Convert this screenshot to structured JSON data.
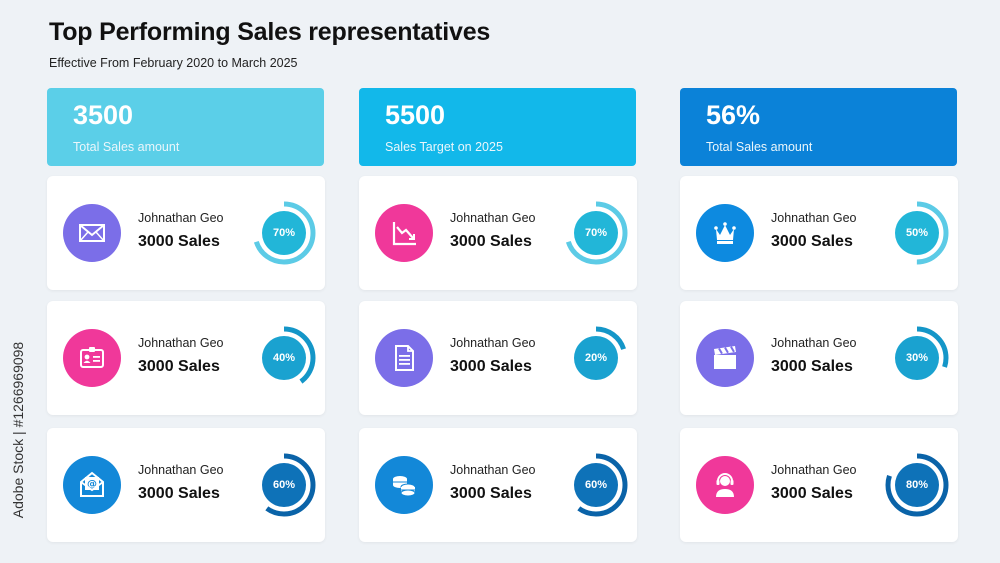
{
  "header": {
    "title": "Top Performing Sales representatives",
    "subtitle": "Effective From February 2020 to March 2025"
  },
  "kpis": [
    {
      "value": "3500",
      "label": "Total Sales amount",
      "color": "#5bcfe8"
    },
    {
      "value": "5500",
      "label": "Sales Target on 2025",
      "color": "#12b8ea"
    },
    {
      "value": "56%",
      "label": "Total Sales amount",
      "color": "#0b82d8"
    }
  ],
  "cards": [
    {
      "name": "Johnathan Geo",
      "sales": "3000 Sales",
      "percent": "70%",
      "fraction": 0.7,
      "icon": "envelope-icon",
      "icon_color": "#7b6ee8",
      "ring_color": "#5ccbe6",
      "inner_color": "#22b6d8"
    },
    {
      "name": "Johnathan Geo",
      "sales": "3000 Sales",
      "percent": "70%",
      "fraction": 0.7,
      "icon": "chart-down-icon",
      "icon_color": "#f0389a",
      "ring_color": "#5ccbe6",
      "inner_color": "#22b6d8"
    },
    {
      "name": "Johnathan Geo",
      "sales": "3000 Sales",
      "percent": "50%",
      "fraction": 0.5,
      "icon": "crown-icon",
      "icon_color": "#0d8ae0",
      "ring_color": "#5ccbe6",
      "inner_color": "#22b6d8"
    },
    {
      "name": "Johnathan Geo",
      "sales": "3000 Sales",
      "percent": "40%",
      "fraction": 0.4,
      "icon": "id-card-icon",
      "icon_color": "#f0389a",
      "ring_color": "#1496c8",
      "inner_color": "#1aa2d0"
    },
    {
      "name": "Johnathan Geo",
      "sales": "3000 Sales",
      "percent": "20%",
      "fraction": 0.2,
      "icon": "document-icon",
      "icon_color": "#7b6ee8",
      "ring_color": "#1496c8",
      "inner_color": "#1aa2d0"
    },
    {
      "name": "Johnathan Geo",
      "sales": "3000 Sales",
      "percent": "30%",
      "fraction": 0.3,
      "icon": "clapperboard-icon",
      "icon_color": "#7b6ee8",
      "ring_color": "#1496c8",
      "inner_color": "#1aa2d0"
    },
    {
      "name": "Johnathan Geo",
      "sales": "3000 Sales",
      "percent": "60%",
      "fraction": 0.6,
      "icon": "email-open-icon",
      "icon_color": "#1388d8",
      "ring_color": "#0a63a8",
      "inner_color": "#0e72b8"
    },
    {
      "name": "Johnathan Geo",
      "sales": "3000 Sales",
      "percent": "60%",
      "fraction": 0.6,
      "icon": "coins-icon",
      "icon_color": "#1388d8",
      "ring_color": "#0a63a8",
      "inner_color": "#0e72b8"
    },
    {
      "name": "Johnathan Geo",
      "sales": "3000 Sales",
      "percent": "80%",
      "fraction": 0.8,
      "icon": "support-agent-icon",
      "icon_color": "#f0389a",
      "ring_color": "#0a63a8",
      "inner_color": "#0e72b8"
    }
  ],
  "watermark": "Adobe Stock | #1266969098"
}
